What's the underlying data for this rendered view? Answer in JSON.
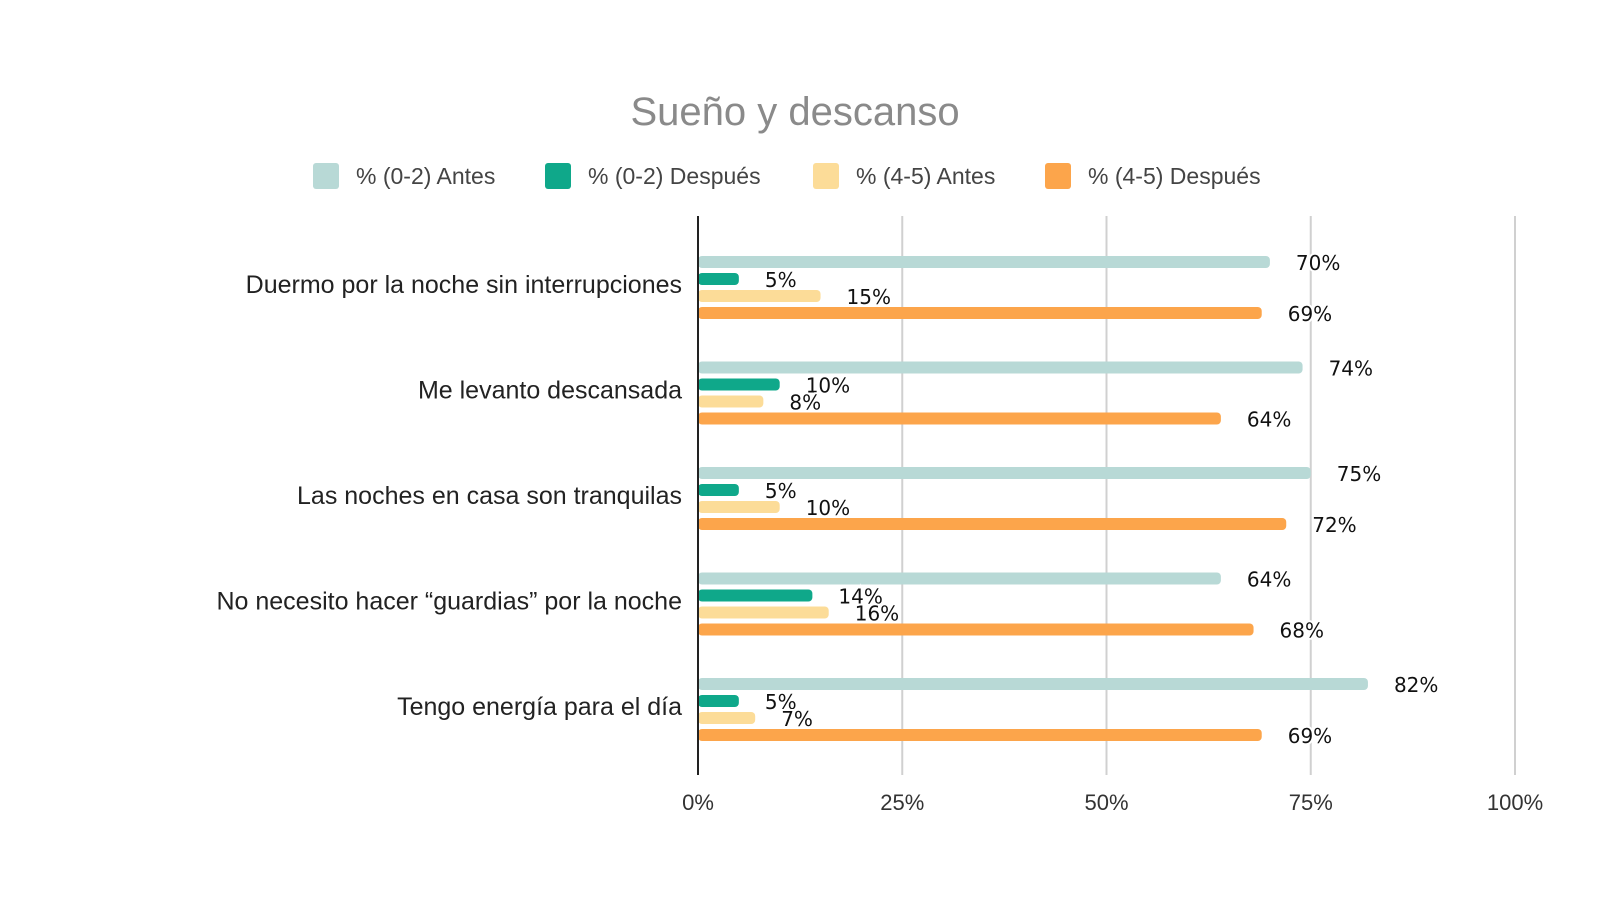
{
  "chart_data": {
    "type": "bar",
    "orientation": "horizontal",
    "title": "Sueño y descanso",
    "xlabel": "",
    "ylabel": "",
    "xlim": [
      0,
      100
    ],
    "x_ticks": [
      "0%",
      "25%",
      "50%",
      "75%",
      "100%"
    ],
    "grid": true,
    "legend_position": "top",
    "categories": [
      "Duermo por la noche sin interrupciones",
      "Me levanto descansada",
      "Las noches en casa son tranquilas",
      "No necesito hacer “guardias” por la noche",
      "Tengo energía para el día"
    ],
    "series": [
      {
        "name": "% (0-2) Antes",
        "color": "#b8d9d6",
        "values": [
          70,
          74,
          75,
          64,
          82
        ]
      },
      {
        "name": "% (0-2) Después",
        "color": "#0fa88a",
        "values": [
          5,
          10,
          5,
          14,
          5
        ]
      },
      {
        "name": "% (4-5) Antes",
        "color": "#fcdc98",
        "values": [
          15,
          8,
          10,
          16,
          7
        ]
      },
      {
        "name": "% (4-5) Después",
        "color": "#fca54b",
        "values": [
          69,
          64,
          72,
          68,
          69
        ]
      }
    ],
    "value_format": "{v}%"
  }
}
